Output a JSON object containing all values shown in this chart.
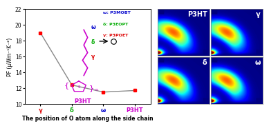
{
  "x_labels": [
    "γ",
    "δ",
    "ω",
    "P3HT"
  ],
  "x_positions": [
    0,
    1,
    2,
    3
  ],
  "y_values": [
    19.0,
    12.4,
    11.5,
    11.7
  ],
  "line_color": "#888888",
  "ylim": [
    10,
    22
  ],
  "yticks": [
    10,
    12,
    14,
    16,
    18,
    20,
    22
  ],
  "ylabel": "PF (μWm⁻¹K⁻²)",
  "xlabel": "The position of O atom along the side chain",
  "legend_items": [
    {
      "label": "ω: P3MOBT",
      "color": "#0000cc"
    },
    {
      "label": "δ: P3EOPT",
      "color": "#00aa00"
    },
    {
      "label": "γ: P3POET",
      "color": "#dd0000"
    }
  ],
  "x_tick_colors": [
    "#dd0000",
    "#00aa00",
    "#0000cc",
    "#cc00cc"
  ],
  "p3ht_label_color": "#cc00cc",
  "background_color": "white",
  "heatmap_labels": [
    [
      "P3HT",
      "γ"
    ],
    [
      "δ",
      "ω"
    ]
  ],
  "chain_label_colors": [
    "#0000cc",
    "#00aa00",
    "#dd0000"
  ],
  "chain_labels": [
    "ω",
    "δ",
    "γ"
  ],
  "arrow_color": "black",
  "molecule_color": "#cc00cc"
}
